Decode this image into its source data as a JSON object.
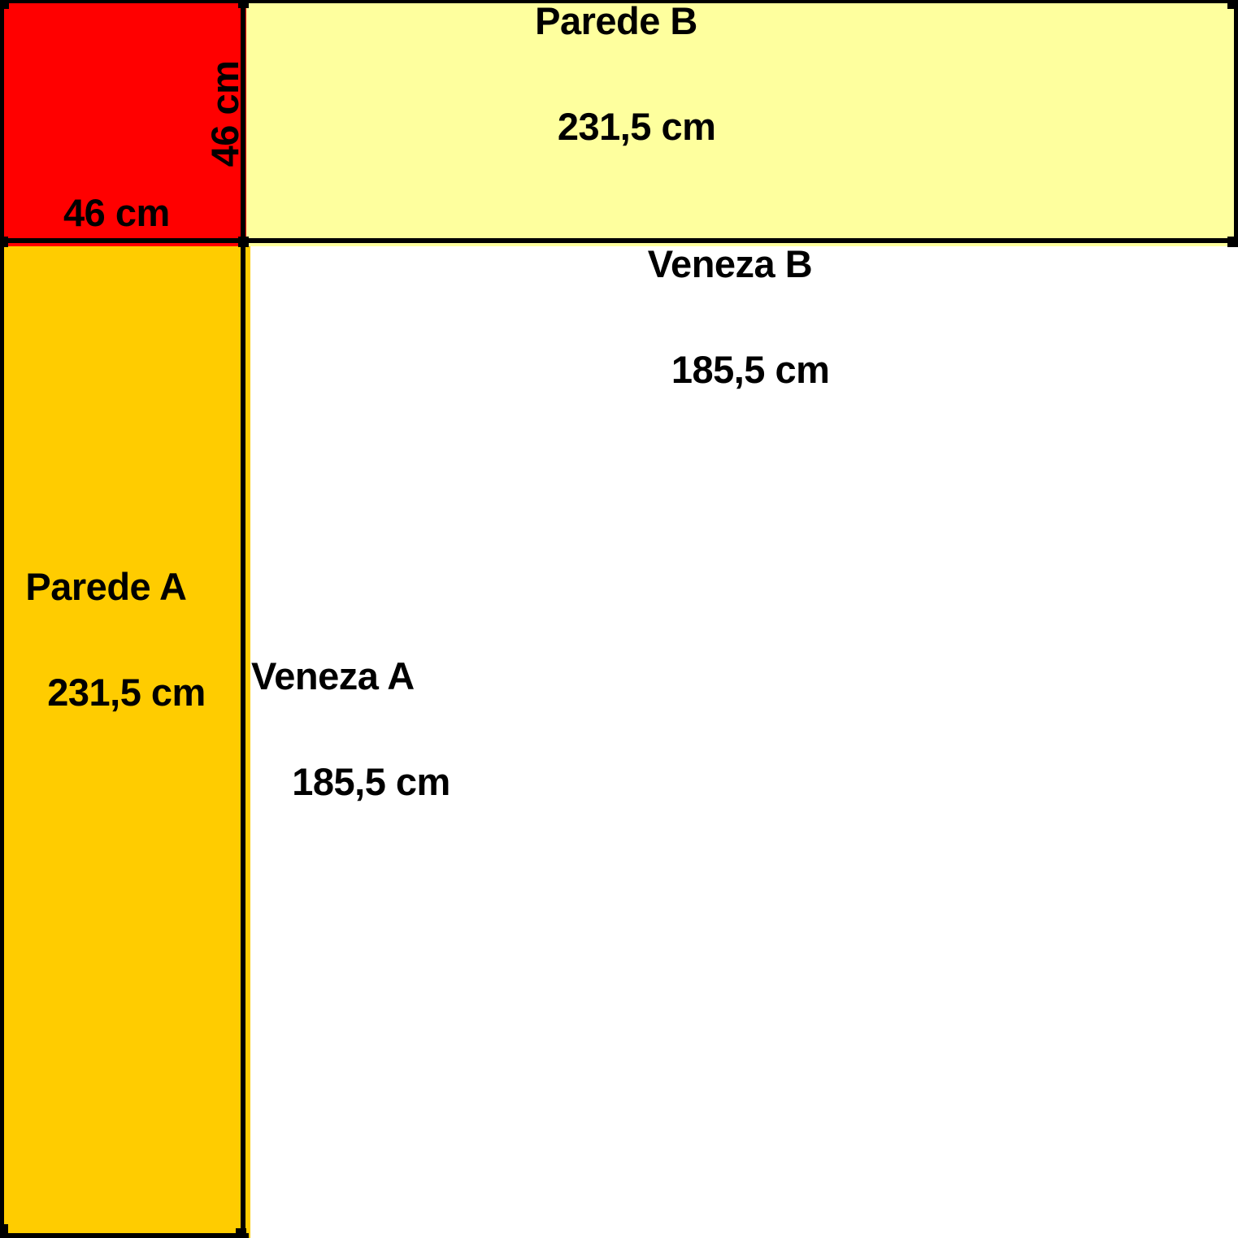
{
  "diagram": {
    "corner_square": {
      "horizontal_side": "46 cm",
      "vertical_side": "46 cm"
    },
    "parede_b": {
      "name": "Parede B",
      "measure": "231,5 cm"
    },
    "veneza_b": {
      "name": "Veneza B",
      "measure": "185,5 cm"
    },
    "parede_a": {
      "name": "Parede A",
      "measure": "231,5 cm"
    },
    "veneza_a": {
      "name": "Veneza A",
      "measure": "185,5 cm"
    }
  },
  "colors": {
    "corner_fill": "#FF0000",
    "parede_b_fill": "#FEFF9E",
    "parede_a_fill": "#FFCC00",
    "veneza_fill": "#FFFFFF",
    "line": "#000000",
    "label_text": "#000000"
  }
}
